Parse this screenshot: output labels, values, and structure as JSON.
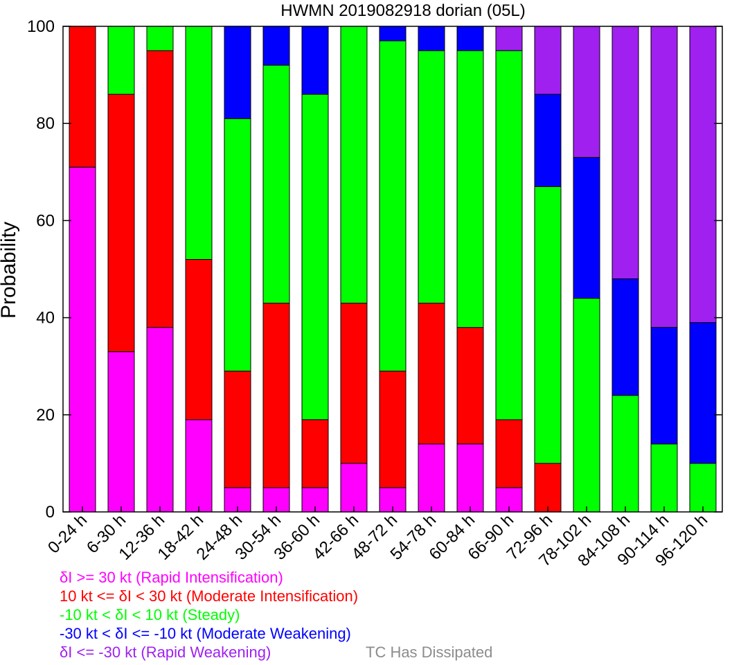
{
  "chart_data": {
    "type": "bar",
    "stacked": true,
    "title": "HWMN 2019082918 dorian (05L)",
    "xlabel": "",
    "ylabel": "Probability",
    "ylim": [
      0,
      100
    ],
    "yticks": [
      0,
      20,
      40,
      60,
      80,
      100
    ],
    "grid": false,
    "categories": [
      "0-24 h",
      "6-30 h",
      "12-36 h",
      "18-42 h",
      "24-48 h",
      "30-54 h",
      "36-60 h",
      "42-66 h",
      "48-72 h",
      "54-78 h",
      "60-84 h",
      "66-90 h",
      "72-96 h",
      "78-102 h",
      "84-108 h",
      "90-114 h",
      "96-120 h"
    ],
    "series": [
      {
        "color": "#ff00ff",
        "values": [
          71,
          33,
          38,
          19,
          5,
          5,
          5,
          10,
          5,
          14,
          14,
          5,
          0,
          0,
          0,
          0,
          0
        ]
      },
      {
        "color": "#ff0000",
        "values": [
          29,
          53,
          57,
          33,
          24,
          38,
          14,
          33,
          24,
          29,
          24,
          14,
          10,
          0,
          0,
          0,
          0
        ]
      },
      {
        "color": "#00ff00",
        "values": [
          0,
          14,
          5,
          48,
          52,
          49,
          67,
          57,
          68,
          52,
          57,
          76,
          57,
          44,
          24,
          14,
          10
        ]
      },
      {
        "color": "#0000ff",
        "values": [
          0,
          0,
          0,
          0,
          19,
          8,
          14,
          0,
          3,
          5,
          5,
          0,
          19,
          29,
          24,
          24,
          29
        ]
      },
      {
        "color": "#a020f0",
        "values": [
          0,
          0,
          0,
          0,
          0,
          0,
          0,
          0,
          0,
          0,
          0,
          5,
          14,
          27,
          52,
          62,
          61
        ]
      }
    ],
    "legend_placement": "bottom-left",
    "legend": [
      {
        "text": "δI >= 30 kt (Rapid Intensification)",
        "color": "#ff00ff"
      },
      {
        "text": "10 kt <= δI < 30 kt (Moderate Intensification)",
        "color": "#ff0000"
      },
      {
        "text": "-10 kt < δI < 10 kt (Steady)",
        "color": "#00ff00"
      },
      {
        "text": "-30 kt < δI <= -10 kt (Moderate Weakening)",
        "color": "#0000ff"
      },
      {
        "text": "δI <= -30 kt (Rapid Weakening)",
        "color": "#a020f0"
      }
    ],
    "extra_label": {
      "text": "TC Has Dissipated",
      "color": "#8c8c8c"
    }
  }
}
